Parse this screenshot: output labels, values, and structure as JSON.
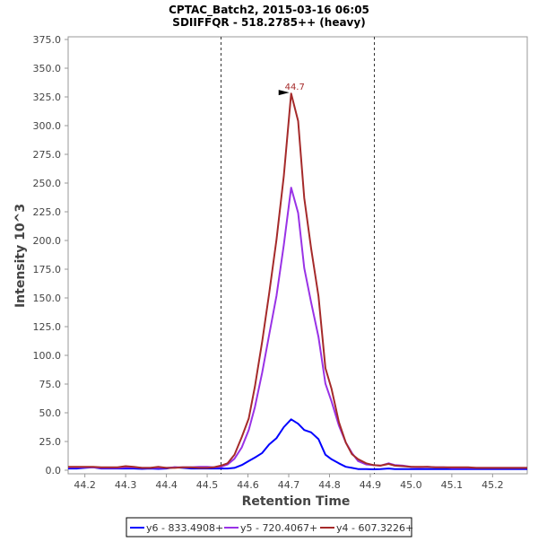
{
  "chart_data": {
    "type": "line",
    "title": "CPTAC_Batch2, 2015-03-16 06:05",
    "subtitle": "SDIIFFQR - 518.2785++ (heavy)",
    "xlabel": "Retention Time",
    "ylabel": "Intensity 10^3",
    "xlim": [
      44.159,
      45.285
    ],
    "ylim": [
      0,
      375
    ],
    "xticks": [
      44.2,
      44.3,
      44.4,
      44.5,
      44.6,
      44.7,
      44.8,
      44.9,
      45.0,
      45.1,
      45.2
    ],
    "xtick_labels": [
      "44.2",
      "44.3",
      "44.4",
      "44.5",
      "44.6",
      "44.7",
      "44.8",
      "44.9",
      "45.0",
      "45.1",
      "45.2"
    ],
    "yticks": [
      0,
      25,
      50,
      75,
      100,
      125,
      150,
      175,
      200,
      225,
      250,
      275,
      300,
      325,
      350,
      375
    ],
    "ytick_labels": [
      "0.0",
      "25.0",
      "50.0",
      "75.0",
      "100.0",
      "125.0",
      "150.0",
      "175.0",
      "200.0",
      "225.0",
      "250.0",
      "275.0",
      "300.0",
      "325.0",
      "350.0",
      "375.0"
    ],
    "grid": false,
    "boundary_lines": [
      44.534,
      44.91
    ],
    "peak_annotation": {
      "label": "44.7",
      "x": 44.706,
      "y": 328
    },
    "legend_position": "bottom",
    "x": [
      44.159,
      44.18,
      44.2,
      44.22,
      44.24,
      44.26,
      44.28,
      44.3,
      44.32,
      44.34,
      44.36,
      44.38,
      44.4,
      44.42,
      44.44,
      44.46,
      44.48,
      44.5,
      44.515,
      44.534,
      44.55,
      44.567,
      44.585,
      44.602,
      44.617,
      44.635,
      44.652,
      44.67,
      44.688,
      44.706,
      44.723,
      44.738,
      44.755,
      44.773,
      44.79,
      44.805,
      44.823,
      44.84,
      44.855,
      44.87,
      44.89,
      44.907,
      44.925,
      44.945,
      44.96,
      44.98,
      45.0,
      45.02,
      45.04,
      45.06,
      45.08,
      45.1,
      45.12,
      45.14,
      45.16,
      45.18,
      45.2,
      45.22,
      45.24,
      45.26,
      45.285
    ],
    "series": [
      {
        "name": "y6 - 833.4908+",
        "color": "#0000ff",
        "values": [
          1.5,
          1.5,
          2,
          2.5,
          1.5,
          1.5,
          1.5,
          1.5,
          1.5,
          1.2,
          1.5,
          1.2,
          1.5,
          2.5,
          2,
          1.5,
          1.5,
          1.5,
          1.5,
          1.5,
          1.5,
          2,
          4.5,
          8,
          11,
          15,
          22.5,
          28,
          37.5,
          44.3,
          40.5,
          35,
          33,
          27,
          13.5,
          9.5,
          6,
          3,
          2,
          1,
          1,
          0.8,
          1,
          1.5,
          1,
          1,
          1,
          1,
          1,
          1,
          1,
          1,
          1,
          1,
          1,
          1,
          1,
          1,
          1,
          1,
          1
        ]
      },
      {
        "name": "y5 - 720.4067+",
        "color": "#9932e6",
        "values": [
          2.5,
          2.5,
          2.5,
          2.5,
          2,
          2,
          2,
          2.5,
          2.5,
          2,
          2,
          2,
          2,
          2.5,
          2.5,
          2.5,
          3,
          3,
          2.5,
          3,
          5,
          10,
          20,
          35,
          55,
          85,
          118,
          152,
          196,
          246,
          224,
          176,
          146,
          116,
          75.5,
          60,
          39,
          24,
          15,
          8,
          5,
          4.5,
          4,
          6,
          4.5,
          4,
          3,
          2.5,
          3,
          2.5,
          2.5,
          2,
          2,
          2,
          2,
          2,
          2,
          2,
          2,
          2,
          2
        ]
      },
      {
        "name": "y4 - 607.3226+",
        "color": "#a52a2a",
        "values": [
          3,
          3,
          3,
          3,
          2.5,
          2.5,
          2.5,
          3.5,
          3,
          2,
          2,
          3,
          2,
          2,
          2.5,
          2.5,
          2,
          2,
          2.5,
          4,
          6,
          13.5,
          29,
          45,
          73,
          112,
          154,
          201,
          256,
          328,
          304,
          237,
          193,
          151.5,
          89,
          71,
          42,
          24,
          14,
          9.6,
          6,
          4.5,
          4,
          5.5,
          4,
          3.5,
          3,
          3,
          3,
          2.5,
          2.5,
          2.5,
          2.5,
          2.5,
          2,
          2,
          2,
          2,
          2,
          2,
          2
        ]
      }
    ]
  }
}
